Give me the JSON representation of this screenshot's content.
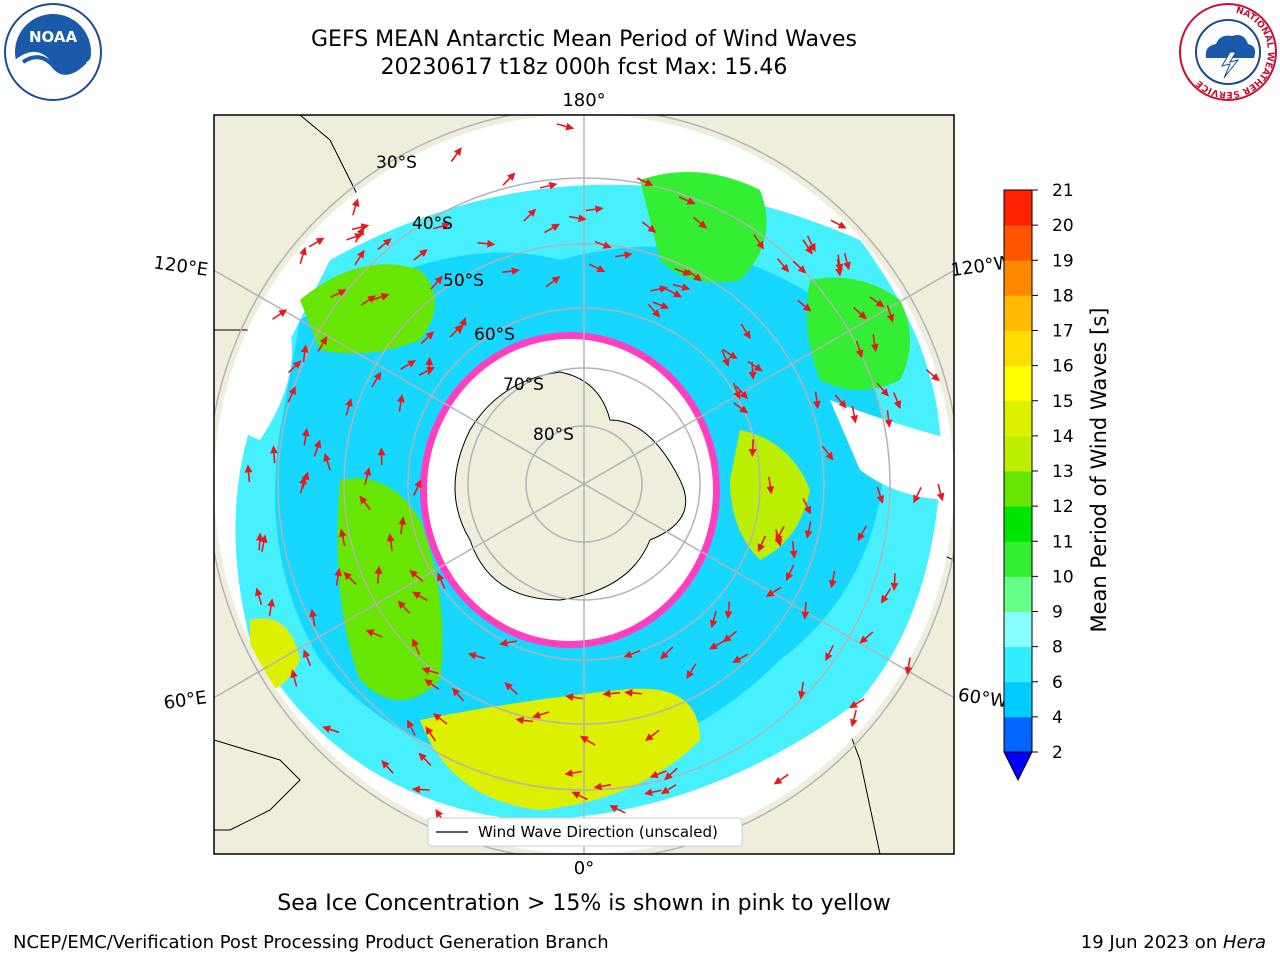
{
  "title": {
    "line1": "GEFS MEAN Antarctic Mean Period of Wind Waves",
    "line2": "20230617 t18z 000h fcst   Max: 15.46"
  },
  "map": {
    "projection": "south-polar-stereographic",
    "longitude_labels": {
      "top": "180°",
      "bottom": "0°",
      "upper_left": "120°E",
      "upper_right": "120°W",
      "lower_left": "60°E",
      "lower_right": "60°W"
    },
    "latitude_labels": [
      "30°S",
      "40°S",
      "50°S",
      "60°S",
      "70°S",
      "80°S"
    ],
    "legend_label": "Wind Wave Direction (unscaled)",
    "colors": {
      "land": "#efeddc",
      "ocean_no_data": "#ffffff",
      "grid": "#b3b3b3",
      "arrows": "#e8191e",
      "sea_ice_edge": "#ff3fbf"
    }
  },
  "colorbar": {
    "label": "Mean Period of Wind Waves [s]",
    "ticks": [
      "2",
      "4",
      "6",
      "8",
      "9",
      "10",
      "11",
      "12",
      "13",
      "14",
      "15",
      "16",
      "17",
      "18",
      "19",
      "20",
      "21"
    ],
    "colors": [
      "#0066ff",
      "#00ccff",
      "#33eeff",
      "#88ffff",
      "#66ff88",
      "#33ee33",
      "#00e600",
      "#66e600",
      "#bbee00",
      "#ddf000",
      "#ffff00",
      "#ffdd00",
      "#ffbb00",
      "#ff8800",
      "#ff5500",
      "#ff2200",
      "#ff0000"
    ],
    "under_color": "#0000ff"
  },
  "notes": {
    "sea_ice": "Sea Ice Concentration > 15% is shown in pink to yellow",
    "credit": "NCEP/EMC/Verification Post Processing Product Generation Branch",
    "date": "19 Jun 2023 on ",
    "machine": "Hera"
  },
  "logos": {
    "noaa_text": "NOAA",
    "nws_ring_text": "NATIONAL WEATHER SERVICE"
  }
}
